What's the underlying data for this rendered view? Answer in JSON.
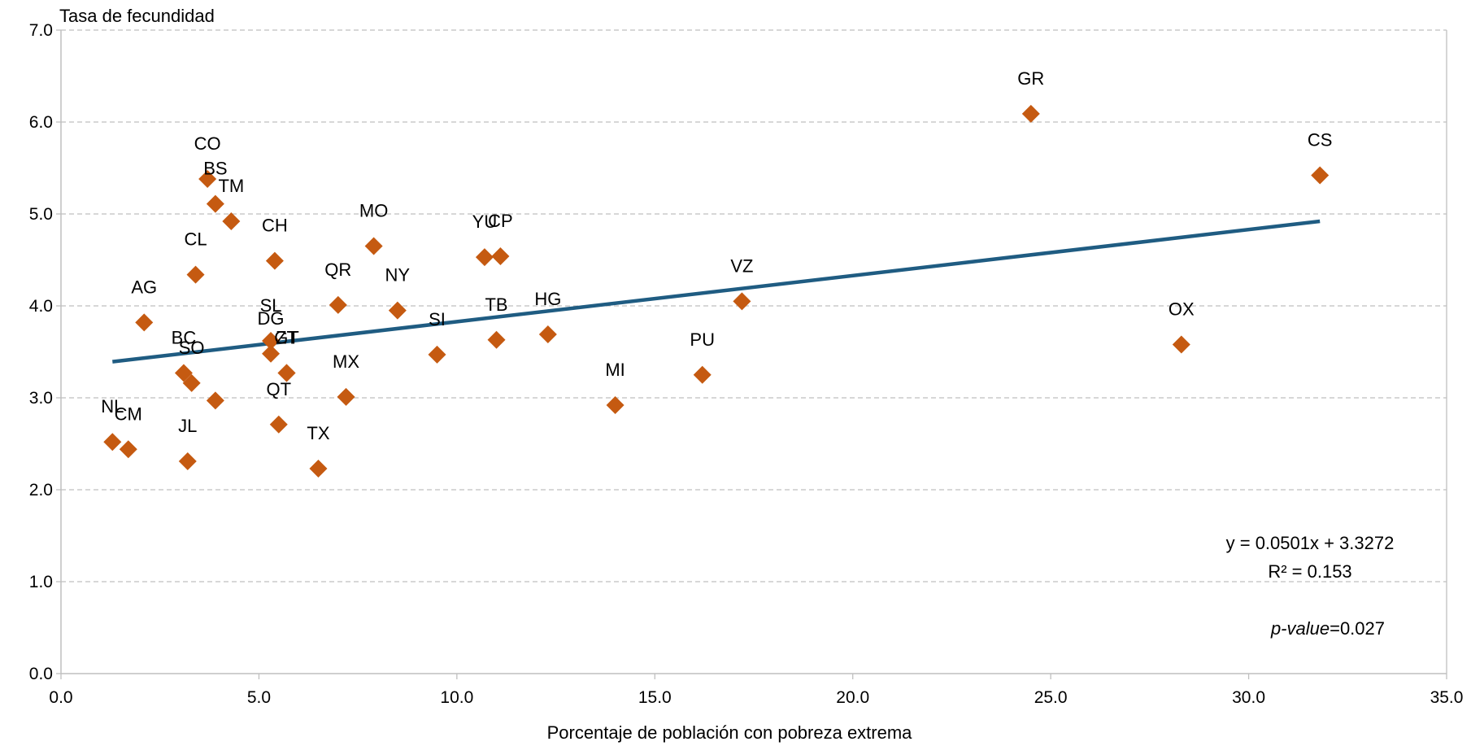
{
  "chart_data": {
    "type": "scatter",
    "title": "",
    "xlabel": "Porcentaje de población con pobreza extrema",
    "ylabel": "Tasa de fecundidad",
    "xlim": [
      0,
      35
    ],
    "ylim": [
      0,
      7
    ],
    "grid": "horizontal dashed",
    "x_ticks": [
      "0.0",
      "5.0",
      "10.0",
      "15.0",
      "20.0",
      "25.0",
      "30.0",
      "35.0"
    ],
    "y_ticks": [
      "0.0",
      "1.0",
      "2.0",
      "3.0",
      "4.0",
      "5.0",
      "6.0",
      "7.0"
    ],
    "points": [
      {
        "label": "NL",
        "x": 1.3,
        "y": 2.52
      },
      {
        "label": "CM",
        "x": 1.7,
        "y": 2.44
      },
      {
        "label": "AG",
        "x": 2.1,
        "y": 3.82
      },
      {
        "label": "BC",
        "x": 3.1,
        "y": 3.27
      },
      {
        "label": "SO",
        "x": 3.3,
        "y": 3.16
      },
      {
        "label": "JL",
        "x": 3.2,
        "y": 2.31
      },
      {
        "label": "CL",
        "x": 3.4,
        "y": 4.34
      },
      {
        "label": "CO",
        "x": 3.7,
        "y": 5.38
      },
      {
        "label": "BS",
        "x": 3.9,
        "y": 5.11
      },
      {
        "label": "TM",
        "x": 4.3,
        "y": 4.92
      },
      {
        "label": "",
        "x": 3.9,
        "y": 2.97
      },
      {
        "label": "CH",
        "x": 5.4,
        "y": 4.49
      },
      {
        "label": "SL",
        "x": 5.3,
        "y": 3.62
      },
      {
        "label": "DG",
        "x": 5.3,
        "y": 3.48
      },
      {
        "label": "ZT",
        "x": 5.7,
        "y": 3.27
      },
      {
        "label": "QT",
        "x": 5.5,
        "y": 2.71
      },
      {
        "label": "GT",
        "x": 5.7,
        "y": 3.27
      },
      {
        "label": "TX",
        "x": 6.5,
        "y": 2.23
      },
      {
        "label": "QR",
        "x": 7.0,
        "y": 4.01
      },
      {
        "label": "MX",
        "x": 7.2,
        "y": 3.01
      },
      {
        "label": "MO",
        "x": 7.9,
        "y": 4.65
      },
      {
        "label": "NY",
        "x": 8.5,
        "y": 3.95
      },
      {
        "label": "SI",
        "x": 9.5,
        "y": 3.47
      },
      {
        "label": "YU",
        "x": 10.7,
        "y": 4.53
      },
      {
        "label": "CP",
        "x": 11.1,
        "y": 4.54
      },
      {
        "label": "TB",
        "x": 11.0,
        "y": 3.63
      },
      {
        "label": "HG",
        "x": 12.3,
        "y": 3.69
      },
      {
        "label": "MI",
        "x": 14.0,
        "y": 2.92
      },
      {
        "label": "PU",
        "x": 16.2,
        "y": 3.25
      },
      {
        "label": "VZ",
        "x": 17.2,
        "y": 4.05
      },
      {
        "label": "GR",
        "x": 24.5,
        "y": 6.09
      },
      {
        "label": "OX",
        "x": 28.3,
        "y": 3.58
      },
      {
        "label": "CS",
        "x": 31.8,
        "y": 5.42
      }
    ],
    "trendline": {
      "slope": 0.0501,
      "intercept": 3.3272,
      "x_range": [
        1.3,
        31.8
      ]
    },
    "annotations": {
      "equation": "y = 0.0501x + 3.3272",
      "r2": "R² = 0.153",
      "pvalue_label": "p-value",
      "pvalue_rest": "=0.027"
    },
    "colors": {
      "marker": "#C55A11",
      "trendline": "#1F5C82",
      "grid": "#BFBFBF",
      "axis": "#BFBFBF"
    }
  }
}
